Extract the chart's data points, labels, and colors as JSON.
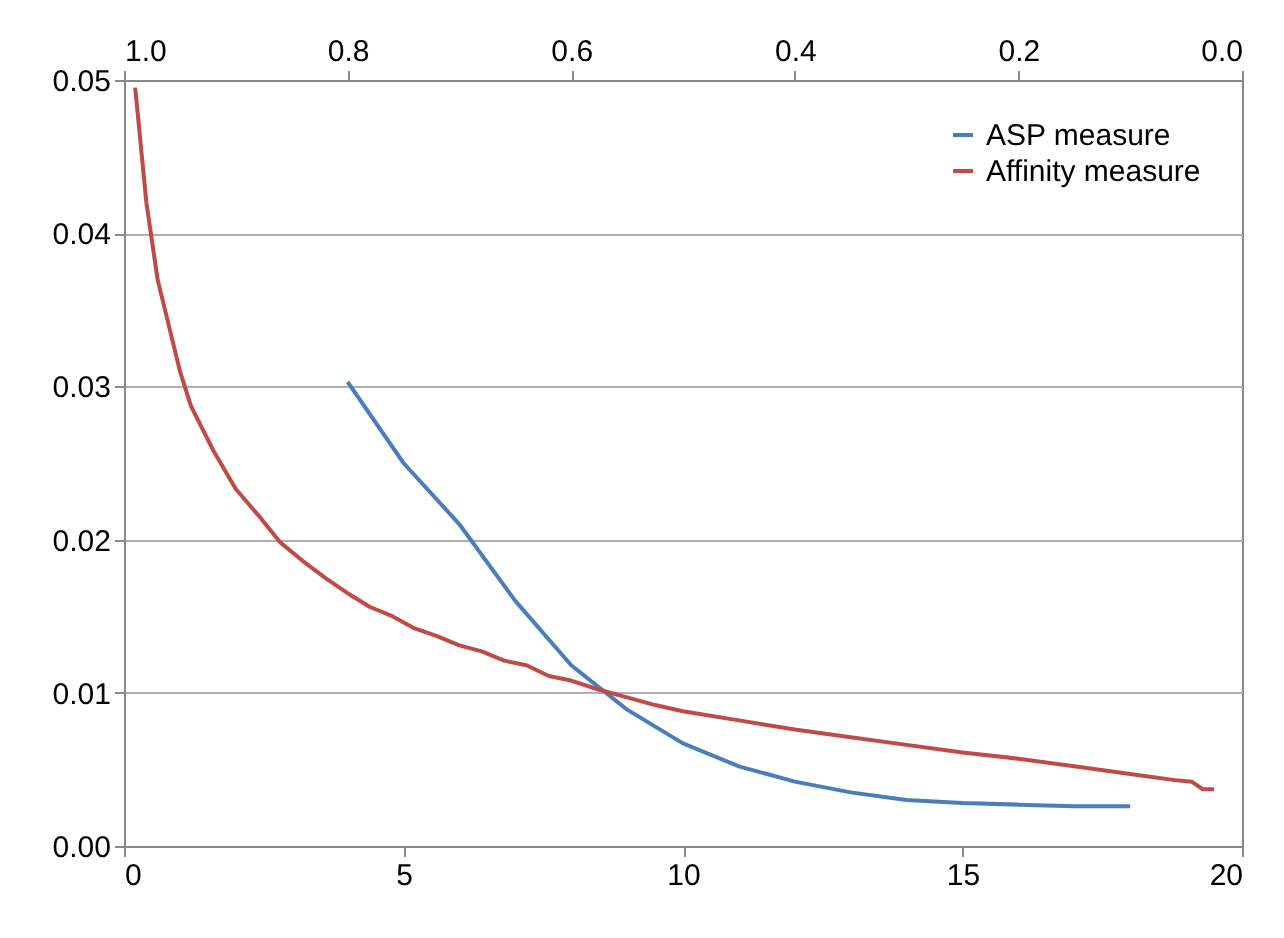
{
  "chart_data": {
    "type": "line",
    "series": [
      {
        "name": "ASP measure",
        "color": "#4a7ebb",
        "x": [
          4,
          5,
          6,
          7,
          8,
          9,
          10,
          11,
          12,
          13,
          14,
          15,
          16,
          17,
          18
        ],
        "values": [
          0.0303,
          0.025,
          0.021,
          0.016,
          0.0118,
          0.0089,
          0.0067,
          0.0052,
          0.0042,
          0.0035,
          0.003,
          0.0028,
          0.0027,
          0.0026,
          0.0026
        ]
      },
      {
        "name": "Affinity measure",
        "color": "#be4b48",
        "x": [
          0.2,
          0.4,
          0.6,
          0.8,
          1.0,
          1.2,
          1.6,
          2.0,
          2.4,
          2.8,
          3.2,
          3.6,
          4.0,
          4.4,
          4.8,
          5.2,
          5.6,
          6.0,
          6.4,
          6.8,
          7.2,
          7.6,
          8.0,
          8.5,
          9.0,
          9.5,
          10,
          11,
          12,
          13,
          14,
          15,
          16,
          17,
          18,
          18.8,
          19.1,
          19.3,
          19.5
        ],
        "values": [
          0.0495,
          0.042,
          0.037,
          0.034,
          0.031,
          0.0287,
          0.0258,
          0.0233,
          0.0216,
          0.0198,
          0.0186,
          0.0175,
          0.0165,
          0.0156,
          0.015,
          0.0142,
          0.0137,
          0.0131,
          0.0127,
          0.0121,
          0.0118,
          0.0111,
          0.0108,
          0.0102,
          0.0097,
          0.0092,
          0.0088,
          0.0082,
          0.0076,
          0.0071,
          0.0066,
          0.0061,
          0.0057,
          0.0052,
          0.0047,
          0.0043,
          0.0042,
          0.0037,
          0.0037
        ]
      }
    ],
    "xlim": [
      0,
      20
    ],
    "xticks": [
      0,
      5,
      10,
      15,
      20
    ],
    "x2lim": [
      1.0,
      0.0
    ],
    "x2ticks": [
      {
        "value": 1.0,
        "label": "1.0"
      },
      {
        "value": 0.8,
        "label": "0.8"
      },
      {
        "value": 0.6,
        "label": "0.6"
      },
      {
        "value": 0.4,
        "label": "0.4"
      },
      {
        "value": 0.2,
        "label": "0.2"
      },
      {
        "value": 0.0,
        "label": "0.0"
      }
    ],
    "ylim": [
      0,
      0.05
    ],
    "yticks": [
      {
        "value": 0,
        "label": "0.00"
      },
      {
        "value": 0.01,
        "label": "0.01"
      },
      {
        "value": 0.02,
        "label": "0.02"
      },
      {
        "value": 0.03,
        "label": "0.03"
      },
      {
        "value": 0.04,
        "label": "0.04"
      },
      {
        "value": 0.05,
        "label": "0.05"
      }
    ],
    "grid": "y",
    "legend": "top right",
    "line_style": "solid",
    "marker": "none"
  }
}
